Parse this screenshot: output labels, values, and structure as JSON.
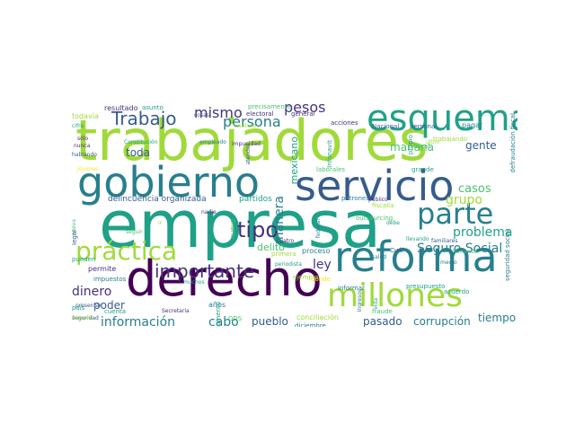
{
  "palette": [
    "#440154",
    "#46327e",
    "#365c8d",
    "#277f8e",
    "#1fa187",
    "#4ac16d",
    "#a0da39",
    "#fde725"
  ],
  "words": [
    {
      "t": "empresa"
    },
    {
      "t": "trabajadores"
    },
    {
      "t": "derecho"
    },
    {
      "t": "reforma"
    },
    {
      "t": "gobierno"
    },
    {
      "t": "servicio"
    },
    {
      "t": "esquema"
    },
    {
      "t": "millones"
    },
    {
      "t": "parte"
    },
    {
      "t": "práctica"
    },
    {
      "t": "importante"
    },
    {
      "t": "tipo"
    },
    {
      "t": "Trabajo"
    },
    {
      "t": "mismo"
    },
    {
      "t": "persona"
    },
    {
      "t": "pesos"
    },
    {
      "t": "Seguro Social"
    },
    {
      "t": "problema"
    },
    {
      "t": "casos"
    },
    {
      "t": "grupo"
    },
    {
      "t": "gente"
    },
    {
      "t": "manera"
    },
    {
      "t": "mañana"
    },
    {
      "t": "mexicano"
    },
    {
      "t": "información"
    },
    {
      "t": "dinero"
    },
    {
      "t": "cabo"
    },
    {
      "t": "pueblo"
    },
    {
      "t": "corrupción"
    },
    {
      "t": "tiempo"
    },
    {
      "t": "pasado"
    },
    {
      "t": "ley"
    },
    {
      "t": "poder"
    },
    {
      "t": "delito"
    },
    {
      "t": "toda"
    },
    {
      "t": "delincuencia organizada"
    },
    {
      "t": "partidos"
    },
    {
      "t": "resultado"
    },
    {
      "t": "asunto"
    },
    {
      "t": "precisamente"
    },
    {
      "t": "electoral"
    },
    {
      "t": "general"
    },
    {
      "t": "acciones"
    },
    {
      "t": "Nacional"
    },
    {
      "t": "personal"
    },
    {
      "t": "pagar"
    },
    {
      "t": "todavía"
    },
    {
      "t": "cifra"
    },
    {
      "t": "sólo"
    },
    {
      "t": "nunca"
    },
    {
      "t": "hablando"
    },
    {
      "t": "Constitución"
    },
    {
      "t": "Instituto"
    },
    {
      "t": "cosas"
    },
    {
      "t": "jóvenes"
    },
    {
      "t": "empleado"
    },
    {
      "t": "impunidad"
    },
    {
      "t": "laborales"
    },
    {
      "t": "grande"
    },
    {
      "t": "fiscal"
    },
    {
      "t": "fiscalía"
    },
    {
      "t": "trabajando"
    },
    {
      "t": "outsourcing"
    },
    {
      "t": "patrones"
    },
    {
      "t": "público"
    },
    {
      "t": "federal"
    },
    {
      "t": "proceso"
    },
    {
      "t": "Cuál"
    },
    {
      "t": "salud"
    },
    {
      "t": "primera"
    },
    {
      "t": "cuatro"
    },
    {
      "t": "periodista"
    },
    {
      "t": "ejemplo"
    },
    {
      "t": "informar"
    },
    {
      "t": "presupuesto"
    },
    {
      "t": "acuerdo"
    },
    {
      "t": "conciliación"
    },
    {
      "t": "diciembre"
    },
    {
      "t": "fraude"
    },
    {
      "t": "años"
    },
    {
      "t": "permite"
    },
    {
      "t": "impuestos"
    },
    {
      "t": "pueden"
    },
    {
      "t": "Secretaría"
    },
    {
      "t": "presentar"
    },
    {
      "t": "seguridad"
    },
    {
      "t": "Primero"
    },
    {
      "t": "cuenta"
    },
    {
      "t": "país"
    },
    {
      "t": "legal"
    },
    {
      "t": "nueva"
    },
    {
      "t": "seguir"
    },
    {
      "t": "nadie"
    },
    {
      "t": "nuevo"
    },
    {
      "t": "debe"
    },
    {
      "t": "llevando"
    },
    {
      "t": "familiares"
    },
    {
      "t": "medio"
    },
    {
      "t": "seguridad social"
    },
    {
      "t": "defraudación fiscal"
    },
    {
      "t": "propio"
    },
    {
      "t": "atender"
    },
    {
      "t": "Infonavit"
    },
    {
      "t": "ingresos"
    },
    {
      "t": "muchos"
    },
    {
      "t": "aumento"
    },
    {
      "t": "DDS"
    },
    {
      "t": "ir"
    },
    {
      "t": "hacienda"
    },
    {
      "t": "últim"
    },
    {
      "t": "vida"
    },
    {
      "t": "dónde"
    }
  ]
}
